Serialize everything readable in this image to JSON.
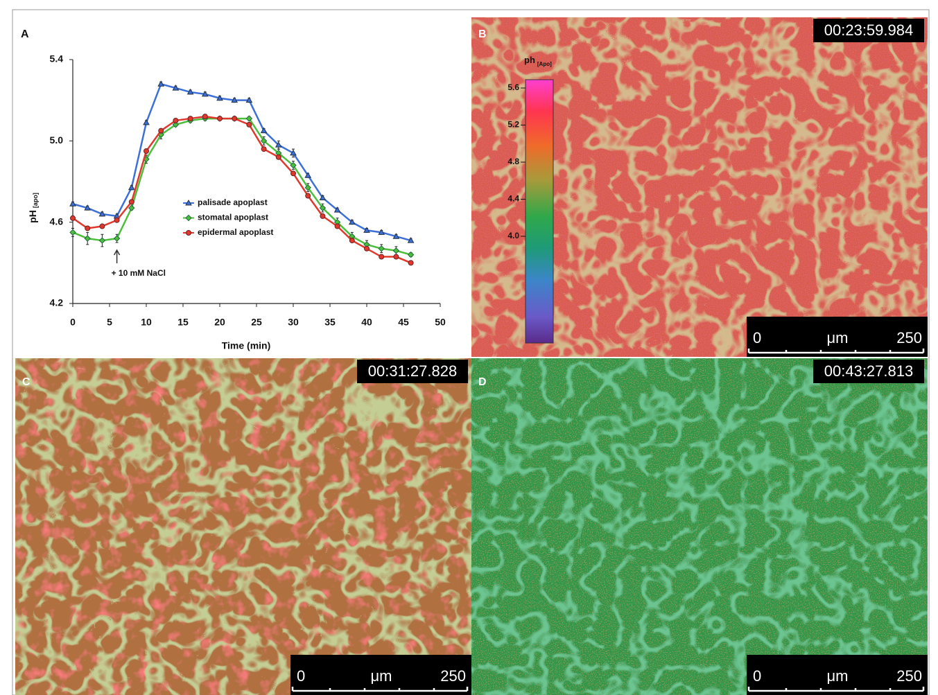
{
  "chart_data": {
    "type": "line",
    "x_label": "Time (min)",
    "y_label": "pH",
    "y_label_sub": "[apo]",
    "annotation": {
      "text": "+ 10 mM NaCl",
      "x": 6
    },
    "x": [
      0,
      2,
      4,
      6,
      8,
      10,
      12,
      14,
      16,
      18,
      20,
      22,
      24,
      26,
      28,
      30,
      32,
      34,
      36,
      38,
      40,
      42,
      44,
      46
    ],
    "series": [
      {
        "name": "palisade apoplast",
        "color": "#3d6fd8",
        "marker": "triangle",
        "values": [
          4.69,
          4.67,
          4.64,
          4.63,
          4.77,
          5.09,
          5.28,
          5.26,
          5.24,
          5.23,
          5.21,
          5.2,
          5.2,
          5.05,
          4.98,
          4.94,
          4.83,
          4.72,
          4.66,
          4.6,
          4.56,
          4.55,
          4.53,
          4.51
        ],
        "errors": [
          0.01,
          0.01,
          0.01,
          0.01,
          0.01,
          0.01,
          0.01,
          0.01,
          0.01,
          0.01,
          0.01,
          0.01,
          0.01,
          0.01,
          0.02,
          0.02,
          0.01,
          0.01,
          0.01,
          0.01,
          0.01,
          0.01,
          0.01,
          0.01
        ]
      },
      {
        "name": "stomatal apoplast",
        "color": "#4cbf3a",
        "marker": "diamond",
        "values": [
          4.55,
          4.52,
          4.51,
          4.52,
          4.67,
          4.91,
          5.03,
          5.08,
          5.1,
          5.11,
          5.11,
          5.11,
          5.11,
          5.0,
          4.94,
          4.88,
          4.77,
          4.67,
          4.6,
          4.53,
          4.49,
          4.47,
          4.46,
          4.44
        ],
        "errors": [
          0.02,
          0.03,
          0.03,
          0.02,
          0.01,
          0.02,
          0.02,
          0.01,
          0.01,
          0.01,
          0.01,
          0.01,
          0.01,
          0.02,
          0.02,
          0.02,
          0.02,
          0.02,
          0.02,
          0.02,
          0.02,
          0.02,
          0.02,
          0.01
        ]
      },
      {
        "name": "epidermal apoplast",
        "color": "#e0382c",
        "marker": "circle",
        "values": [
          4.62,
          4.57,
          4.58,
          4.61,
          4.7,
          4.95,
          5.05,
          5.1,
          5.11,
          5.12,
          5.11,
          5.11,
          5.08,
          4.96,
          4.92,
          4.84,
          4.73,
          4.63,
          4.58,
          4.51,
          4.47,
          4.43,
          4.43,
          4.4
        ],
        "errors": [
          0.01,
          0.01,
          0.01,
          0.01,
          0.01,
          0.01,
          0.01,
          0.01,
          0.01,
          0.01,
          0.01,
          0.01,
          0.01,
          0.01,
          0.01,
          0.01,
          0.01,
          0.01,
          0.01,
          0.01,
          0.01,
          0.01,
          0.01,
          0.01
        ]
      }
    ],
    "xlim": [
      0,
      50
    ],
    "xticks": [
      0,
      5,
      10,
      15,
      20,
      25,
      30,
      35,
      40,
      45,
      50
    ],
    "ylim": [
      4.2,
      5.4
    ],
    "yticks": [
      4.2,
      4.6,
      {
        "value": 5,
        "label": "5.0"
      },
      5.4
    ],
    "legend": "center",
    "grid": false
  },
  "panel_labels": [
    "A",
    "B",
    "C",
    "D"
  ],
  "colorbar": {
    "title": "ph",
    "subscript": "[Apo]",
    "ticks": [
      "5.6",
      "5.2",
      "4.8",
      "4.4",
      "4.0"
    ]
  },
  "images": [
    {
      "timestamp": "00:23:59.984",
      "scale_start": "0",
      "scale_unit": "μm",
      "scale_end": "250"
    },
    {
      "timestamp": "00:31:27.828",
      "scale_start": "0",
      "scale_unit": "μm",
      "scale_end": "250"
    },
    {
      "timestamp": "00:43:27.813",
      "scale_start": "0",
      "scale_unit": "μm",
      "scale_end": "250"
    }
  ]
}
